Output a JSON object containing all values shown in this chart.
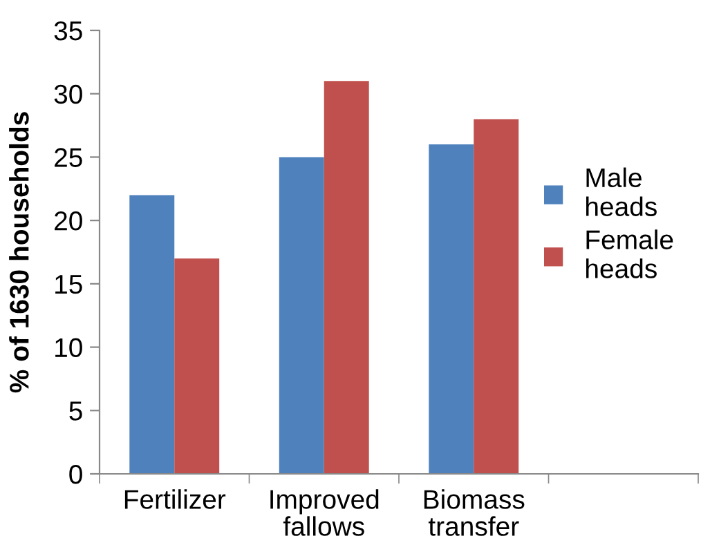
{
  "chart_data": {
    "type": "bar",
    "ylabel": "% of 1630 households",
    "categories": [
      "Fertilizer",
      "Improved fallows",
      "Biomass transfer",
      null
    ],
    "series": [
      {
        "name": "Male heads",
        "color": "#4f81bd",
        "values": [
          22,
          25,
          26,
          null
        ]
      },
      {
        "name": "Female heads",
        "color": "#c0504d",
        "values": [
          17,
          31,
          28,
          null
        ]
      }
    ],
    "ylim": [
      0,
      35
    ],
    "yticks": [
      0,
      5,
      10,
      15,
      20,
      25,
      30,
      35
    ],
    "grid": false,
    "legend": "right"
  }
}
